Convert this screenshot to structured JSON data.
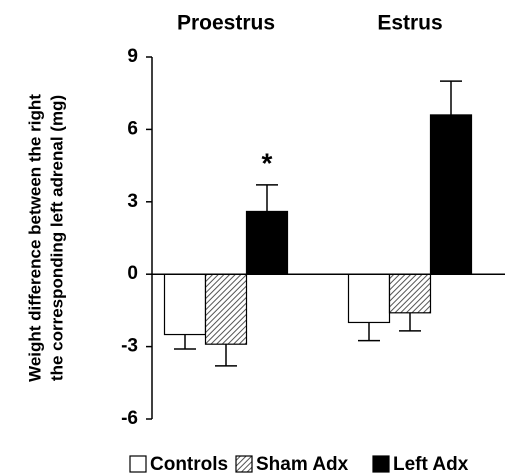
{
  "chart_data": {
    "type": "bar",
    "ylabel": [
      "Weight difference between the right",
      "the corresponding left adrenal (mg)"
    ],
    "categories": [
      "Proestrus",
      "Estrus"
    ],
    "series": [
      {
        "name": "Controls",
        "color": "#ffffff",
        "values": [
          -2.5,
          -2.0
        ],
        "errors": [
          0.6,
          0.75
        ]
      },
      {
        "name": "Sham Adx",
        "color": "hatch",
        "values": [
          -2.9,
          -1.6
        ],
        "errors": [
          0.9,
          0.75
        ]
      },
      {
        "name": "Left Adx",
        "color": "#000000",
        "values": [
          2.6,
          6.6
        ],
        "errors": [
          1.1,
          1.4
        ]
      }
    ],
    "annotation": "*",
    "ylim": [
      -6,
      9
    ],
    "yticks": [
      9,
      6,
      3,
      0,
      -3,
      -6
    ],
    "grid": false
  }
}
